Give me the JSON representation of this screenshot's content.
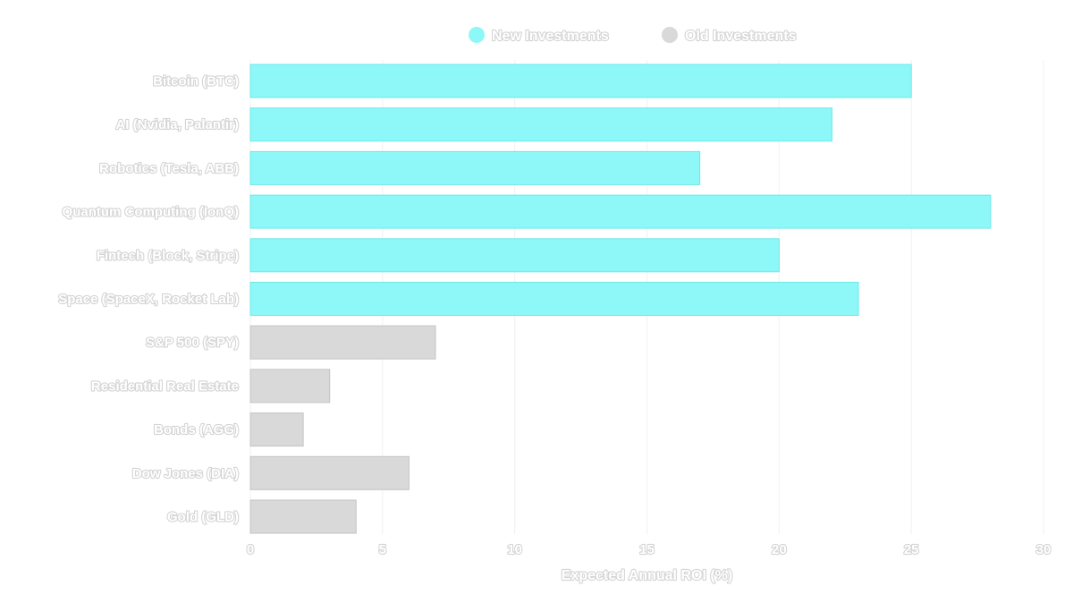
{
  "chart_data": {
    "type": "bar",
    "orientation": "horizontal",
    "title": "",
    "xlabel": "Expected Annual ROI (%)",
    "ylabel": "",
    "xlim": [
      0,
      30
    ],
    "xticks": [
      0,
      5,
      10,
      15,
      20,
      25,
      30
    ],
    "grid": true,
    "legend_position": "top-center",
    "legend": [
      {
        "name": "New Investments",
        "color": "#8ef8f8"
      },
      {
        "name": "Old Investments",
        "color": "#d9d9d9"
      }
    ],
    "categories": [
      "Bitcoin (BTC)",
      "AI (Nvidia, Palantir)",
      "Robotics (Tesla, ABB)",
      "Quantum Computing (IonQ)",
      "Fintech (Block, Stripe)",
      "Space (SpaceX, Rocket Lab)",
      "S&P 500 (SPY)",
      "Residential Real Estate",
      "Bonds (AGG)",
      "Dow Jones (DIA)",
      "Gold (GLD)"
    ],
    "values": [
      25,
      22,
      17,
      28,
      20,
      23,
      7,
      3,
      2,
      6,
      4
    ],
    "groups": [
      "New Investments",
      "New Investments",
      "New Investments",
      "New Investments",
      "New Investments",
      "New Investments",
      "Old Investments",
      "Old Investments",
      "Old Investments",
      "Old Investments",
      "Old Investments"
    ]
  },
  "colors": {
    "new_fill": "#8ef8f8",
    "new_stroke": "#6fe8e8",
    "old_fill": "#d9d9d9",
    "old_stroke": "#c4c4c4",
    "grid": "#f1f1f1"
  }
}
